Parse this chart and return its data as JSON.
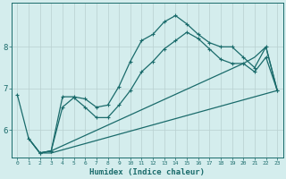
{
  "xlabel": "Humidex (Indice chaleur)",
  "background_color": "#d4eded",
  "line_color": "#1a6b6b",
  "grid_color": "#b8d0d0",
  "xlim": [
    -0.5,
    23.5
  ],
  "ylim": [
    5.35,
    9.05
  ],
  "yticks": [
    6,
    7,
    8
  ],
  "xticks": [
    0,
    1,
    2,
    3,
    4,
    5,
    6,
    7,
    8,
    9,
    10,
    11,
    12,
    13,
    14,
    15,
    16,
    17,
    18,
    19,
    20,
    21,
    22,
    23
  ],
  "lines": [
    {
      "x": [
        0,
        1,
        2,
        3,
        4,
        5,
        6,
        7,
        8,
        9,
        10,
        11,
        12,
        13,
        14,
        15,
        16,
        17,
        18,
        19,
        20,
        21,
        22,
        23
      ],
      "y": [
        6.85,
        5.8,
        5.45,
        5.5,
        6.8,
        6.8,
        6.75,
        6.55,
        6.6,
        7.05,
        7.65,
        8.15,
        8.3,
        8.6,
        8.75,
        8.55,
        8.3,
        8.1,
        8.0,
        8.0,
        7.75,
        7.5,
        8.0,
        6.95
      ],
      "marker": "+",
      "markersize": 3.5,
      "lw": 0.9
    },
    {
      "x": [
        2,
        3,
        4,
        5,
        6,
        7,
        8,
        9,
        10,
        11,
        12,
        13,
        14,
        15,
        16,
        17,
        18,
        19,
        20,
        21,
        22,
        23
      ],
      "y": [
        5.45,
        5.5,
        6.55,
        6.78,
        6.55,
        6.3,
        6.3,
        6.6,
        6.95,
        7.4,
        7.65,
        7.95,
        8.15,
        8.35,
        8.2,
        7.95,
        7.7,
        7.6,
        7.6,
        7.4,
        7.75,
        6.95
      ],
      "marker": "+",
      "markersize": 3.5,
      "lw": 0.9
    },
    {
      "x": [
        1,
        2,
        3,
        23
      ],
      "y": [
        5.8,
        5.45,
        5.45,
        6.95
      ],
      "marker": null,
      "markersize": 0,
      "lw": 0.9
    },
    {
      "x": [
        1,
        2,
        3,
        20,
        21,
        22,
        23
      ],
      "y": [
        5.8,
        5.45,
        5.5,
        7.6,
        7.75,
        8.0,
        6.95
      ],
      "marker": null,
      "markersize": 0,
      "lw": 0.9
    }
  ]
}
